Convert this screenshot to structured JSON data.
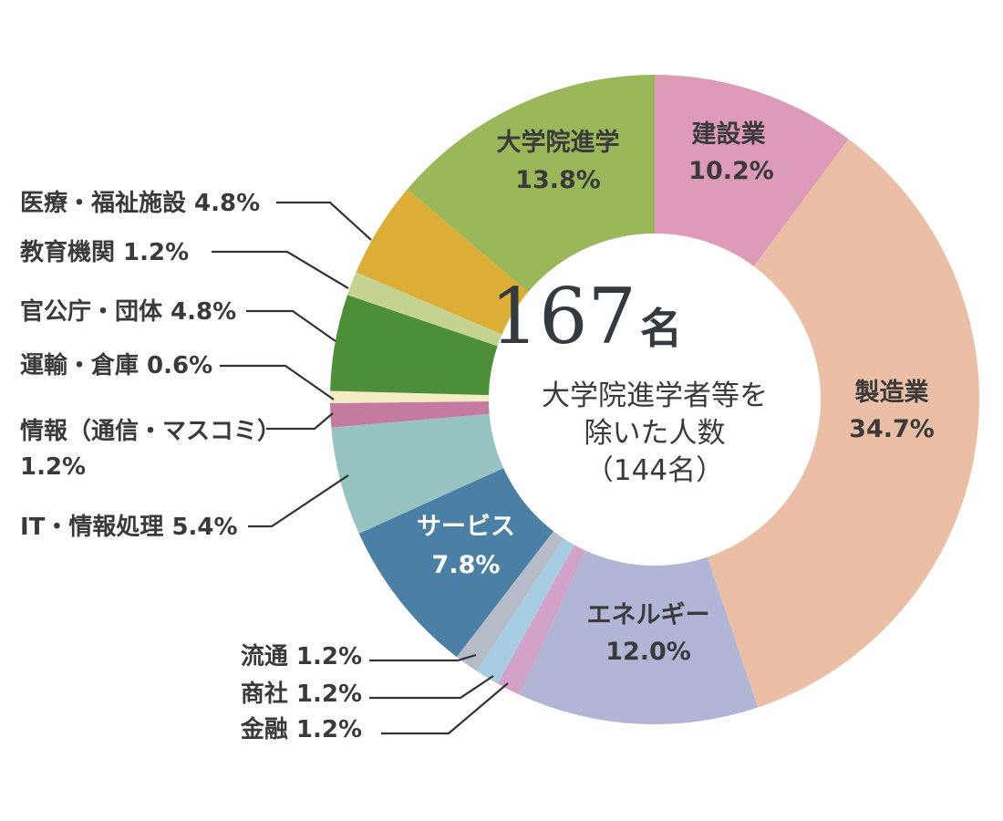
{
  "chart_data": {
    "type": "pie",
    "style": "donut",
    "center": {
      "total": "167",
      "unit": "名",
      "caption": [
        "大学院進学者等を",
        "除いた人数",
        "（144名）"
      ]
    },
    "slices": [
      {
        "name": "建設業",
        "value": 10.2,
        "color": "#de9bb9",
        "label_pos": "inside",
        "label_color": "#3a3a3a"
      },
      {
        "name": "製造業",
        "value": 34.7,
        "color": "#ebbfa6",
        "label_pos": "inside",
        "label_color": "#3a3a3a"
      },
      {
        "name": "エネルギー",
        "value": 12.0,
        "color": "#b1b6d6",
        "label_pos": "inside",
        "label_color": "#3a3a3a"
      },
      {
        "name": "金融",
        "value": 1.2,
        "color": "#d2a2c8",
        "label_pos": "outside",
        "label_lines": [
          "金融 1.2%"
        ]
      },
      {
        "name": "商社",
        "value": 1.2,
        "color": "#a7cde3",
        "label_pos": "outside",
        "label_lines": [
          "商社 1.2%"
        ]
      },
      {
        "name": "流通",
        "value": 1.2,
        "color": "#b6bcc7",
        "label_pos": "outside",
        "label_lines": [
          "流通 1.2%"
        ]
      },
      {
        "name": "サービス",
        "value": 7.8,
        "color": "#4a80a5",
        "label_pos": "inside",
        "label_color": "#ffffff"
      },
      {
        "name": "IT・情報処理",
        "value": 5.4,
        "color": "#97c3c1",
        "label_pos": "outside",
        "label_lines": [
          "IT・情報処理 5.4%"
        ]
      },
      {
        "name": "情報（通信・マスコミ）",
        "value": 1.2,
        "color": "#c47b9f",
        "label_pos": "outside",
        "label_lines": [
          "情報（通信・マスコミ）",
          " 1.2%"
        ]
      },
      {
        "name": "運輸・倉庫",
        "value": 0.6,
        "color": "#f3ecc4",
        "label_pos": "outside",
        "label_lines": [
          "運輸・倉庫 0.6%"
        ]
      },
      {
        "name": "官公庁・団体",
        "value": 4.8,
        "color": "#4d8f39",
        "label_pos": "outside",
        "label_lines": [
          "官公庁・団体 4.8%"
        ]
      },
      {
        "name": "教育機関",
        "value": 1.2,
        "color": "#c5d390",
        "label_pos": "outside",
        "label_lines": [
          "教育機関 1.2%"
        ]
      },
      {
        "name": "医療・福祉施設",
        "value": 4.8,
        "color": "#dcae35",
        "label_pos": "outside",
        "label_lines": [
          "医療・福祉施設 4.8%"
        ]
      },
      {
        "name": "大学院進学",
        "value": 13.8,
        "color": "#9ab85a",
        "label_pos": "inside",
        "label_color": "#3a3a3a"
      }
    ]
  }
}
